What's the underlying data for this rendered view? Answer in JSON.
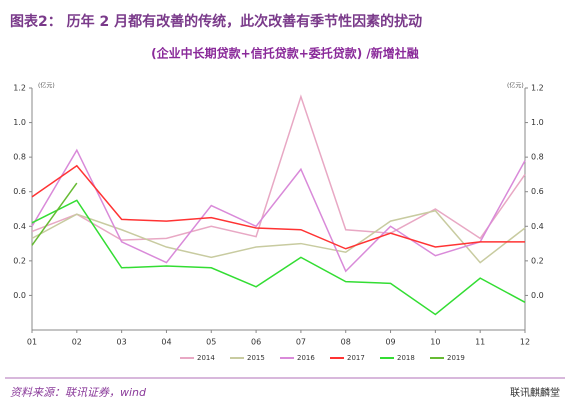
{
  "chart_data": {
    "type": "line",
    "title": "图表2：  历年 2 月都有改善的传统，此次改善有季节性因素的扰动",
    "subtitle": "(企业中长期贷款+信托贷款+委托贷款) /新增社融",
    "y_label": "(亿元)",
    "source": "资料来源：联讯证券，wind",
    "watermark": "联讯麒麟堂",
    "categories": [
      "01",
      "02",
      "03",
      "04",
      "05",
      "06",
      "07",
      "08",
      "09",
      "10",
      "11",
      "12"
    ],
    "ylim": [
      -0.2,
      1.2
    ],
    "yticks": [
      {
        "value": 0,
        "label": "0.0"
      },
      0.2,
      0.4,
      0.6,
      0.8,
      {
        "value": 1,
        "label": "1.0"
      },
      1.2
    ],
    "y2lim": [
      -0.2,
      1.2
    ],
    "y2ticks": [
      {
        "value": 0,
        "label": "0.0"
      },
      0.2,
      0.4,
      0.6,
      0.8,
      {
        "value": 1,
        "label": "1.0"
      },
      1.2
    ],
    "legend": "bottom",
    "series": [
      {
        "name": "2014",
        "color": "#e8a8c4",
        "values": [
          0.37,
          0.47,
          0.32,
          0.33,
          0.4,
          0.34,
          1.15,
          0.38,
          0.36,
          0.5,
          0.33,
          0.7
        ]
      },
      {
        "name": "2015",
        "color": "#c8cba0",
        "values": [
          0.33,
          0.47,
          0.38,
          0.28,
          0.22,
          0.28,
          0.3,
          0.25,
          0.43,
          0.49,
          0.19,
          0.39
        ]
      },
      {
        "name": "2016",
        "color": "#d98ad9",
        "values": [
          0.4,
          0.84,
          0.31,
          0.19,
          0.52,
          0.4,
          0.73,
          0.14,
          0.4,
          0.23,
          0.31,
          0.78
        ]
      },
      {
        "name": "2017",
        "color": "#ff3333",
        "values": [
          0.57,
          0.75,
          0.44,
          0.43,
          0.45,
          0.39,
          0.38,
          0.27,
          0.36,
          0.28,
          0.31,
          0.31
        ]
      },
      {
        "name": "2018",
        "color": "#33dd33",
        "values": [
          0.42,
          0.55,
          0.16,
          0.17,
          0.16,
          0.05,
          0.22,
          0.08,
          0.07,
          -0.11,
          0.1,
          -0.04
        ]
      },
      {
        "name": "2019",
        "color": "#66bb33",
        "values": [
          0.29,
          0.65,
          null,
          null,
          null,
          null,
          null,
          null,
          null,
          null,
          null,
          null
        ]
      }
    ]
  }
}
